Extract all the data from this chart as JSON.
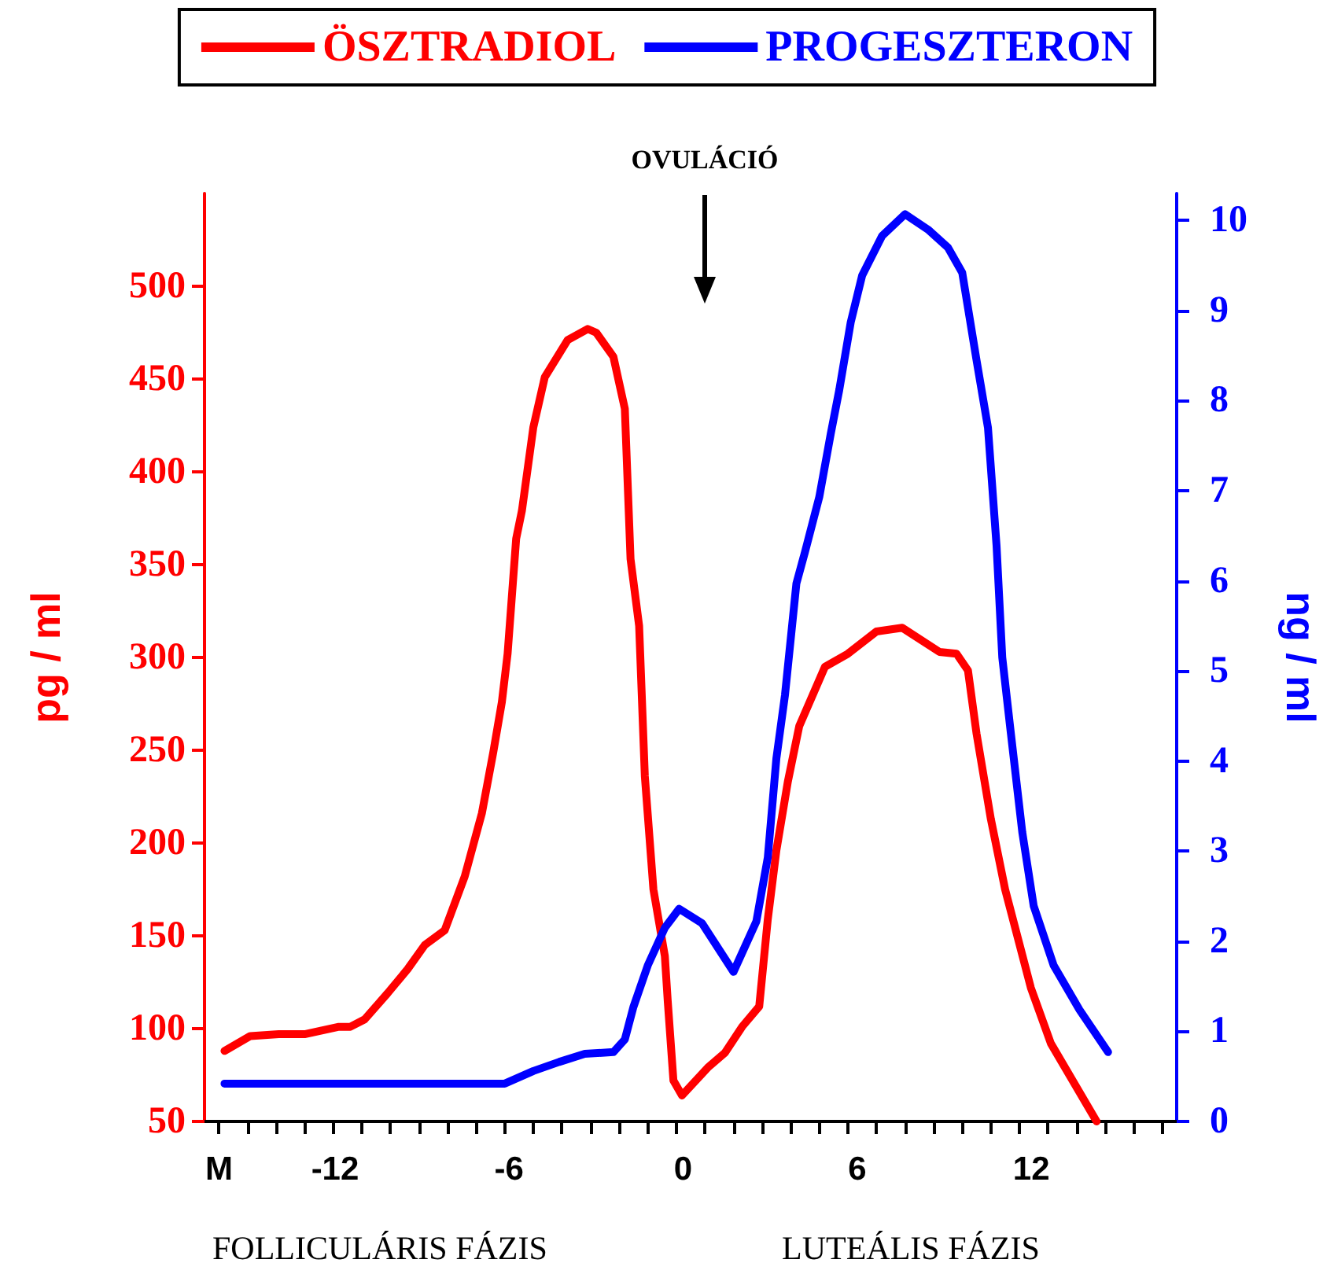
{
  "chart_data": {
    "type": "line",
    "ylabel": "pg / ml",
    "y2label": "ng / ml",
    "annotations": [
      "OVULÁCIÓ",
      "FOLLICULÁRIS FÁZIS",
      "LUTEÁLIS FÁZIS"
    ],
    "series": [
      {
        "name": "ÖSZTRADIOL",
        "color": "#ff0000",
        "x": [
          -15.8,
          -14.9,
          -13.9,
          -13,
          -11.8,
          -11.4,
          -10.9,
          -10.1,
          -9.4,
          -8.8,
          -8.1,
          -7.4,
          -6.8,
          -6.4,
          -6.1,
          -5.9,
          -5.6,
          -5.4,
          -5,
          -4.6,
          -3.8,
          -3.1,
          -2.8,
          -2.2,
          -1.8,
          -1.6,
          -1.3,
          -1.1,
          -0.8,
          -0.4,
          -0.3,
          -0.1,
          0.2,
          1.1,
          1.7,
          2.3,
          2.9,
          3.2,
          3.5,
          3.9,
          4.3,
          5.2,
          6,
          7,
          7.9,
          9.2,
          9.8,
          10.2,
          10.5,
          11,
          11.5,
          12.4,
          13.1,
          14.7
        ],
        "values": [
          88,
          96,
          97,
          97,
          101,
          101,
          105,
          119,
          132,
          145,
          153,
          182,
          216,
          249,
          276,
          302,
          364,
          379,
          424,
          451,
          471,
          477,
          475,
          462,
          434,
          353,
          317,
          236,
          175,
          139,
          115,
          72,
          64,
          79,
          87,
          101,
          112,
          159,
          196,
          233,
          263,
          295,
          302,
          314,
          316,
          303,
          302,
          293,
          259,
          213,
          175,
          122,
          92,
          50
        ]
      },
      {
        "name": "PROGESZTERON",
        "color": "#0000ff",
        "axis": "y2",
        "x": [
          -15.8,
          -6,
          -5,
          -4.1,
          -3.2,
          -2.2,
          -1.8,
          -1.5,
          -1,
          -0.4,
          0.1,
          0.9,
          2,
          2.8,
          3.2,
          3.5,
          3.8,
          4.2,
          4.5,
          5,
          5.4,
          5.7,
          6.1,
          6.5,
          7.2,
          8,
          8.8,
          9.5,
          10,
          10.5,
          10.9,
          11.2,
          11.4,
          11.7,
          12.1,
          12.5,
          13.2,
          14.1,
          15.1
        ],
        "values": [
          0.42,
          0.42,
          0.56,
          0.66,
          0.75,
          0.77,
          0.91,
          1.27,
          1.73,
          2.15,
          2.36,
          2.2,
          1.66,
          2.22,
          2.93,
          4.03,
          4.73,
          5.97,
          6.32,
          6.93,
          7.63,
          8.12,
          8.87,
          9.39,
          9.83,
          10.07,
          9.9,
          9.7,
          9.42,
          8.45,
          7.7,
          6.39,
          5.15,
          4.31,
          3.21,
          2.39,
          1.73,
          1.24,
          0.77
        ]
      }
    ],
    "xlim": [
      -16.5,
      17.5
    ],
    "xticks": [
      {
        "value": -16,
        "label": "M"
      },
      {
        "value": -15,
        "label": null
      },
      {
        "value": -14,
        "label": null
      },
      {
        "value": -13,
        "label": null
      },
      -12,
      {
        "value": -11,
        "label": null
      },
      {
        "value": -10,
        "label": null
      },
      {
        "value": -9,
        "label": null
      },
      {
        "value": -8,
        "label": null
      },
      {
        "value": -7,
        "label": null
      },
      -6,
      {
        "value": -5,
        "label": null
      },
      {
        "value": -4,
        "label": null
      },
      {
        "value": -3,
        "label": null
      },
      {
        "value": -2,
        "label": null
      },
      {
        "value": -1,
        "label": null
      },
      0,
      {
        "value": 1,
        "label": null
      },
      {
        "value": 2,
        "label": null
      },
      {
        "value": 3,
        "label": null
      },
      {
        "value": 4,
        "label": null
      },
      {
        "value": 5,
        "label": null
      },
      6,
      {
        "value": 7,
        "label": null
      },
      {
        "value": 8,
        "label": null
      },
      {
        "value": 9,
        "label": null
      },
      {
        "value": 10,
        "label": null
      },
      {
        "value": 11,
        "label": null
      },
      12,
      {
        "value": 13,
        "label": null
      },
      {
        "value": 14,
        "label": null
      },
      {
        "value": 15,
        "label": null
      },
      {
        "value": 16,
        "label": null
      },
      {
        "value": 17,
        "label": null
      }
    ],
    "ylim": [
      50,
      550
    ],
    "yticks": [
      50,
      100,
      150,
      200,
      250,
      300,
      350,
      400,
      450,
      500
    ],
    "y2lim": [
      0,
      10.3
    ],
    "y2ticks": [
      0,
      1,
      2,
      3,
      4,
      5,
      6,
      7,
      8,
      9,
      10
    ],
    "grid": false,
    "legend": "top",
    "marker": "none",
    "line_style": "solid"
  }
}
